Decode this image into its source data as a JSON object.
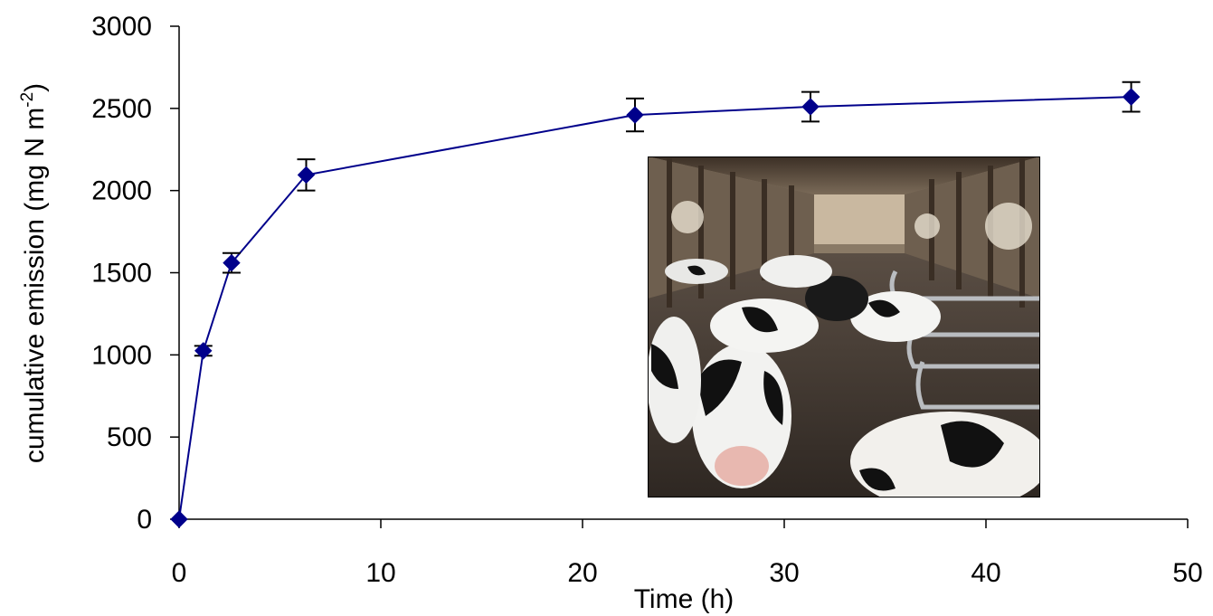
{
  "chart_data": {
    "type": "line",
    "xlabel": "Time (h)",
    "ylabel": "cumulative emission (mg N m",
    "ylabel_superscript": "-2",
    "ylabel_close": ")",
    "xlim": [
      0,
      50
    ],
    "ylim": [
      0,
      3000
    ],
    "xticks": [
      "0",
      "10",
      "20",
      "30",
      "40",
      "50"
    ],
    "yticks": [
      "0",
      "500",
      "1000",
      "1500",
      "2000",
      "2500",
      "3000"
    ],
    "grid": false,
    "legend": "none",
    "series": [
      {
        "color": "#00008B",
        "marker": "diamond",
        "x": [
          0,
          1.2,
          2.6,
          6.3,
          22.6,
          31.3,
          47.2
        ],
        "y": [
          0,
          1025,
          1560,
          2095,
          2460,
          2510,
          2570
        ],
        "error": [
          0,
          30,
          60,
          95,
          100,
          90,
          90
        ]
      }
    ],
    "inset_image": {
      "subject": "cows-in-freestall-barn-photo"
    }
  }
}
